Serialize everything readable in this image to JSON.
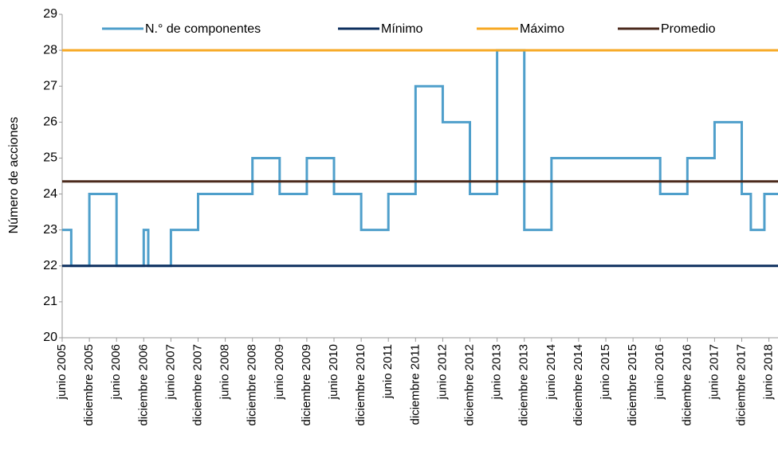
{
  "chart_data": {
    "type": "step-line",
    "y_axis_label": "Número de acciones",
    "ylim": [
      20,
      29
    ],
    "yticks": [
      20,
      21,
      22,
      23,
      24,
      25,
      26,
      27,
      28,
      29
    ],
    "xlim": [
      "2005-06",
      "2018-08"
    ],
    "xticks": [
      {
        "value": "2005-06",
        "label": "junio 2005"
      },
      {
        "value": "2005-12",
        "label": "diciembre 2005"
      },
      {
        "value": "2006-06",
        "label": "junio 2006"
      },
      {
        "value": "2006-12",
        "label": "diciembre 2006"
      },
      {
        "value": "2007-06",
        "label": "junio 2007"
      },
      {
        "value": "2007-12",
        "label": "diciembre 2007"
      },
      {
        "value": "2008-06",
        "label": "junio 2008"
      },
      {
        "value": "2008-12",
        "label": "diciembre 2008"
      },
      {
        "value": "2009-06",
        "label": "junio 2009"
      },
      {
        "value": "2009-12",
        "label": "diciembre 2009"
      },
      {
        "value": "2010-06",
        "label": "junio 2010"
      },
      {
        "value": "2010-12",
        "label": "diciembre 2010"
      },
      {
        "value": "2011-06",
        "label": "junio 2011"
      },
      {
        "value": "2011-12",
        "label": "diciembre 2011"
      },
      {
        "value": "2012-06",
        "label": "junio 2012"
      },
      {
        "value": "2012-12",
        "label": "diciembre 2012"
      },
      {
        "value": "2013-06",
        "label": "junio 2013"
      },
      {
        "value": "2013-12",
        "label": "diciembre 2013"
      },
      {
        "value": "2014-06",
        "label": "junio 2014"
      },
      {
        "value": "2014-12",
        "label": "diciembre 2014"
      },
      {
        "value": "2015-06",
        "label": "junio 2015"
      },
      {
        "value": "2015-12",
        "label": "diciembre 2015"
      },
      {
        "value": "2016-06",
        "label": "junio 2016"
      },
      {
        "value": "2016-12",
        "label": "diciembre 2016"
      },
      {
        "value": "2017-06",
        "label": "junio 2017"
      },
      {
        "value": "2017-12",
        "label": "diciembre 2017"
      },
      {
        "value": "2018-06",
        "label": "junio 2018"
      }
    ],
    "series": [
      {
        "name": "N.° de componentes",
        "color": "#4f9fcb",
        "x": [
          "2005-06",
          "2005-08",
          "2005-12",
          "2006-06",
          "2006-12",
          "2007-01",
          "2007-06",
          "2007-12",
          "2008-12",
          "2009-06",
          "2009-12",
          "2010-06",
          "2010-12",
          "2011-06",
          "2011-12",
          "2012-06",
          "2012-12",
          "2013-06",
          "2013-12",
          "2014-06",
          "2016-06",
          "2016-12",
          "2017-06",
          "2017-12",
          "2018-02",
          "2018-05",
          "2018-08"
        ],
        "values": [
          23,
          22,
          24,
          22,
          23,
          22,
          23,
          24,
          25,
          24,
          25,
          24,
          23,
          24,
          27,
          26,
          24,
          28,
          23,
          25,
          24,
          25,
          26,
          24,
          23,
          24,
          24
        ]
      },
      {
        "name": "Mínimo",
        "color": "#0d2f5e",
        "level": 22
      },
      {
        "name": "Máximo",
        "color": "#f7a823",
        "level": 28
      },
      {
        "name": "Promedio",
        "color": "#4b2a1c",
        "level": 24.35
      }
    ]
  }
}
